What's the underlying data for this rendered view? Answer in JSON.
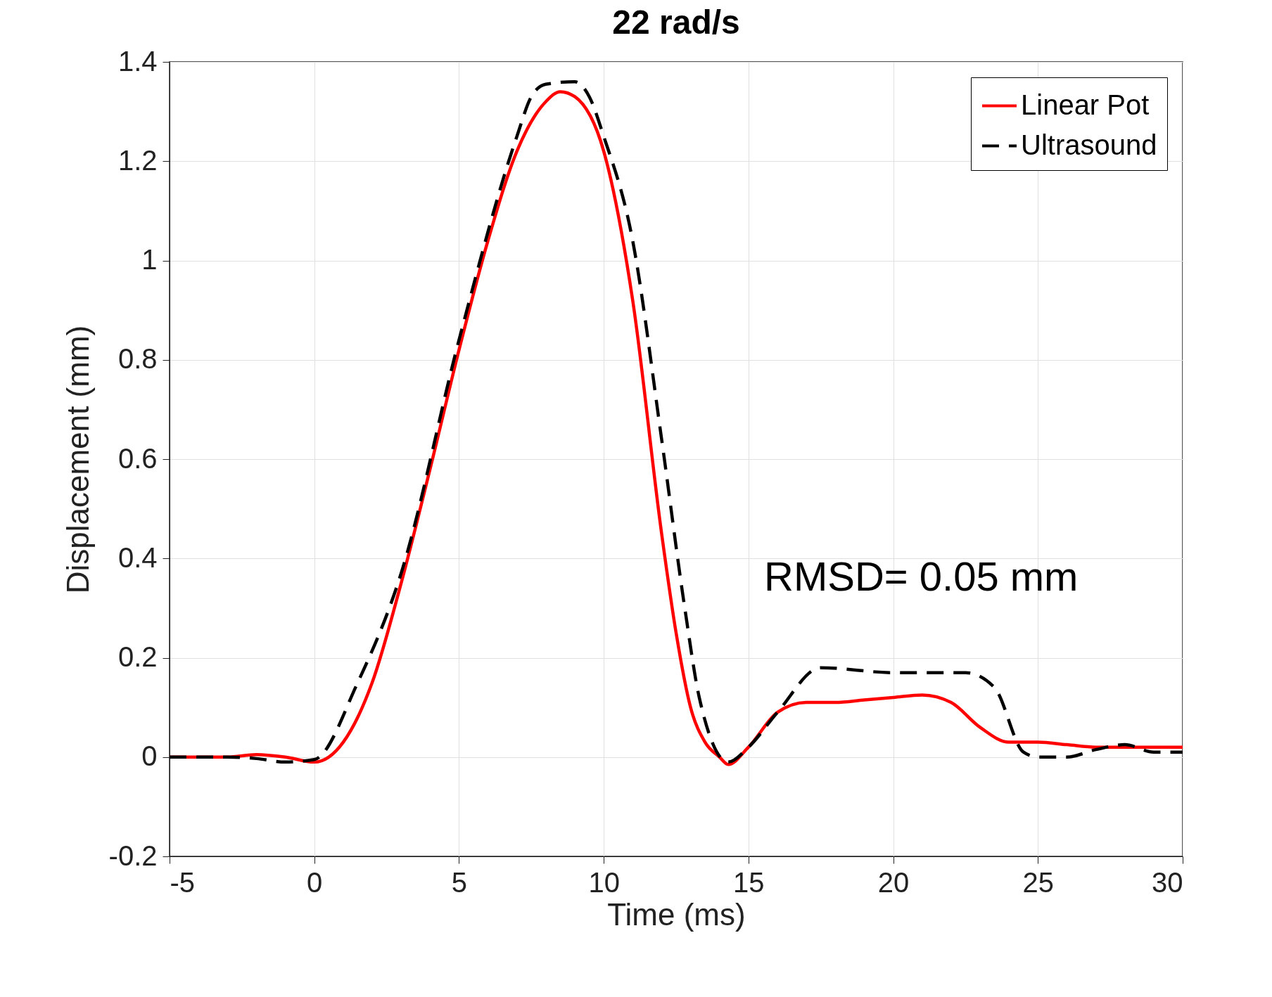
{
  "chart_data": {
    "type": "line",
    "title": "22 rad/s",
    "xlabel": "Time (ms)",
    "ylabel": "Displacement (mm)",
    "annotations": [
      "RMSD= 0.05 mm"
    ],
    "xlim": [
      -5,
      30
    ],
    "xticks": [
      -5,
      0,
      5,
      10,
      15,
      20,
      25,
      30
    ],
    "ylim": [
      -0.2,
      1.4
    ],
    "yticks": [
      -0.2,
      0,
      0.2,
      0.4,
      0.6,
      0.8,
      1,
      1.2,
      1.4
    ],
    "grid": true,
    "legend": "top right",
    "marker": "none",
    "series": [
      {
        "name": "Linear Pot",
        "color": "#ff0000",
        "line_style": "solid",
        "x": [
          -5,
          -3,
          -2,
          -1,
          0,
          1,
          2,
          3,
          4,
          5,
          6,
          7,
          8,
          8.5,
          9,
          10,
          11,
          12,
          12.5,
          13,
          13.5,
          14,
          14.3,
          15,
          16,
          17,
          18,
          19,
          20,
          21,
          22,
          23,
          24,
          25,
          26,
          27,
          28,
          30
        ],
        "values": [
          0,
          0,
          0.005,
          0,
          -0.01,
          0.03,
          0.15,
          0.35,
          0.58,
          0.82,
          1.04,
          1.22,
          1.32,
          1.34,
          1.33,
          1.22,
          0.92,
          0.45,
          0.25,
          0.1,
          0.03,
          0,
          -0.015,
          0.02,
          0.09,
          0.11,
          0.11,
          0.115,
          0.12,
          0.125,
          0.11,
          0.06,
          0.03,
          0.03,
          0.025,
          0.02,
          0.02,
          0.02
        ]
      },
      {
        "name": "Ultrasound",
        "color": "#000000",
        "line_style": "dashed",
        "x": [
          -5,
          -3,
          -2,
          -1,
          0,
          1.5,
          3,
          5,
          7,
          7.5,
          8,
          9,
          9.5,
          10,
          11,
          12,
          12.8,
          13.3,
          14.3,
          15,
          16,
          17.5,
          20,
          22.5,
          23.5,
          24.5,
          25,
          26,
          27,
          28,
          29,
          30
        ],
        "values": [
          0,
          0,
          -0.003,
          -0.01,
          -0.005,
          0.15,
          0.37,
          0.84,
          1.25,
          1.33,
          1.355,
          1.36,
          1.33,
          1.25,
          1.04,
          0.64,
          0.3,
          0.12,
          -0.01,
          0.02,
          0.09,
          0.18,
          0.17,
          0.17,
          0.14,
          0.01,
          0,
          0,
          0.015,
          0.025,
          0.01,
          0.01
        ]
      }
    ]
  }
}
